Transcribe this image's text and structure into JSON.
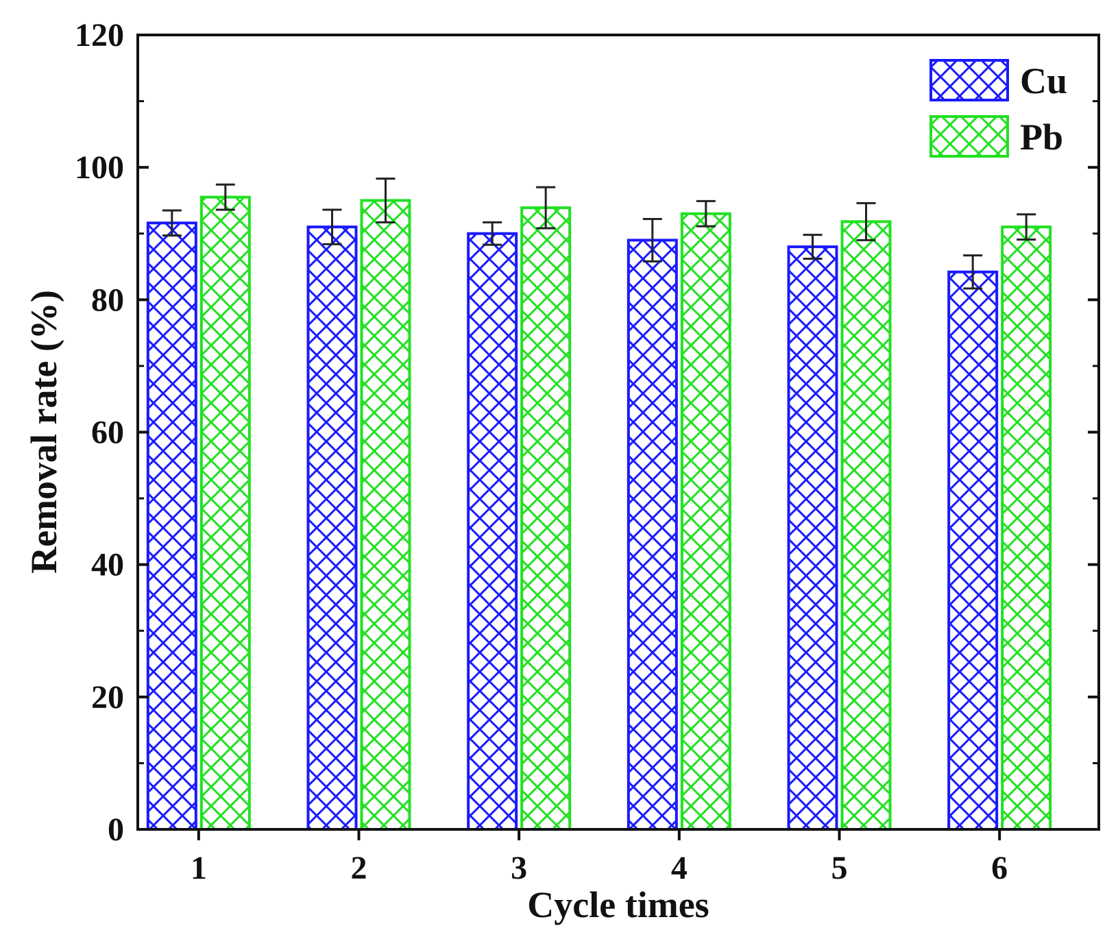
{
  "chart_data": {
    "type": "bar",
    "title": "",
    "xlabel": "Cycle times",
    "ylabel": "Removal rate (%)",
    "categories": [
      "1",
      "2",
      "3",
      "4",
      "5",
      "6"
    ],
    "ylim": [
      0,
      120
    ],
    "yticks": [
      "0",
      "20",
      "40",
      "60",
      "80",
      "100",
      "120"
    ],
    "ytick_values": [
      0,
      20,
      40,
      60,
      80,
      100,
      120
    ],
    "grid": false,
    "legend_position": "top-right",
    "series": [
      {
        "name": "Cu",
        "color": "#1a1aff",
        "pattern": "crosshatch",
        "values": [
          91.6,
          91.0,
          90.0,
          89.0,
          88.0,
          84.2
        ],
        "errors": [
          1.9,
          2.6,
          1.7,
          3.2,
          1.8,
          2.5
        ]
      },
      {
        "name": "Pb",
        "color": "#22e022",
        "pattern": "crosshatch",
        "values": [
          95.5,
          95.0,
          93.9,
          93.0,
          91.8,
          91.0
        ],
        "errors": [
          1.9,
          3.3,
          3.1,
          1.9,
          2.8,
          1.9
        ]
      }
    ]
  }
}
